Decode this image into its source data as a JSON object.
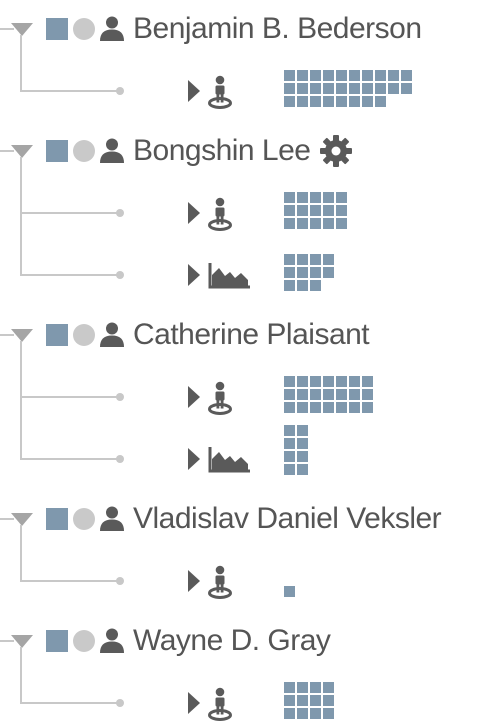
{
  "authors": [
    {
      "name": "Benjamin B. Bederson",
      "settings": false,
      "children": [
        {
          "icon": "person-on-target-icon",
          "count": 28
        }
      ]
    },
    {
      "name": "Bongshin Lee",
      "settings": true,
      "children": [
        {
          "icon": "person-on-target-icon",
          "count": 15
        },
        {
          "icon": "area-chart-icon",
          "count": 11
        }
      ]
    },
    {
      "name": "Catherine Plaisant",
      "settings": false,
      "children": [
        {
          "icon": "person-on-target-icon",
          "count": 21
        },
        {
          "icon": "area-chart-icon",
          "count": 8
        }
      ]
    },
    {
      "name": "Vladislav Daniel Veksler",
      "settings": false,
      "children": [
        {
          "icon": "person-on-target-icon",
          "count": 1
        }
      ]
    },
    {
      "name": "Wayne D. Gray",
      "settings": false,
      "children": [
        {
          "icon": "person-on-target-icon",
          "count": 12
        }
      ]
    }
  ],
  "colors": {
    "accent": "#7f98ad",
    "line": "#c8c8c8",
    "text": "#555555",
    "icon": "#5a5a5a",
    "circle": "#c9c9c9",
    "toggle": "#a5a5a5"
  }
}
